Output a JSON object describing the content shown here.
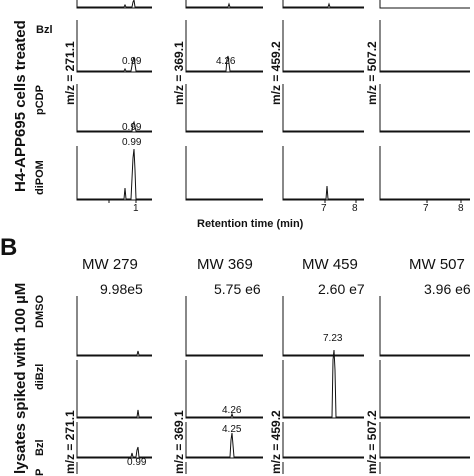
{
  "panel_a": {
    "side_label": "H4-APP695 cells treated",
    "row_labels": [
      "Bzl",
      "pCDP",
      "diPOM"
    ],
    "mz_labels": [
      "m/z = 271.1",
      "m/z = 369.1",
      "m/z = 459.2",
      "m/z = 507.2"
    ],
    "peak_labels": [
      "0.99",
      "4.26",
      "0.99",
      "0.99"
    ],
    "x_ticks_col1": [
      "1"
    ],
    "x_ticks_col3": [
      "7",
      "8"
    ],
    "x_ticks_col4": [
      "7",
      "8"
    ],
    "x_axis_title": "Retention time (min)"
  },
  "panel_b": {
    "letter": "B",
    "side_label": "lysates spiked with 100 µM",
    "headers": [
      "MW 279",
      "MW 369",
      "MW 459",
      "MW 507"
    ],
    "row_labels": [
      "DMSO",
      "diBzl",
      "Bzl",
      "P"
    ],
    "intensities": [
      "9.98e5",
      "5.75 e6",
      "2.60 e7",
      "3.96 e6"
    ],
    "peak_labels": [
      "7.23",
      "4.26",
      "4.25",
      "0.99"
    ],
    "mz_labels": [
      "m/z = 271.1",
      "m/z = 369.1",
      "m/z = 459.2",
      "m/z = 507.2"
    ]
  },
  "colors": {
    "trace": "#111111",
    "axis": "#111111"
  }
}
